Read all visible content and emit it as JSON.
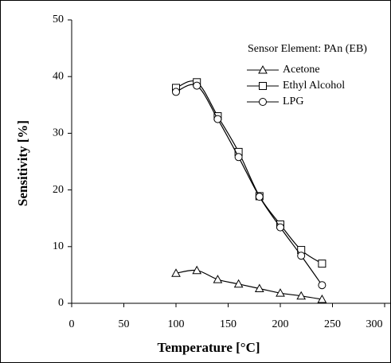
{
  "chart_data": {
    "type": "line",
    "x_label": "Temperature [°C]",
    "y_label": "Sensitivity [%]",
    "legend_title": "Sensor Element: PAn (EB)",
    "x": [
      100,
      120,
      140,
      160,
      180,
      200,
      220,
      240
    ],
    "series": [
      {
        "name": "Acetone",
        "marker": "triangle",
        "color": "#000000",
        "values": [
          5.3,
          5.8,
          4.2,
          3.4,
          2.6,
          1.8,
          1.3,
          0.7
        ]
      },
      {
        "name": "Ethyl Alcohol",
        "marker": "square",
        "color": "#000000",
        "values": [
          38,
          39,
          33,
          26.7,
          18.9,
          13.9,
          9.4,
          7.0
        ]
      },
      {
        "name": "LPG",
        "marker": "circle",
        "color": "#000000",
        "values": [
          37.3,
          38.4,
          32.5,
          25.8,
          18.8,
          13.4,
          8.4,
          3.2
        ]
      }
    ],
    "xlim": [
      0,
      300
    ],
    "xticks": [
      0,
      50,
      100,
      150,
      200,
      250,
      300
    ],
    "ylim": [
      0,
      50
    ],
    "yticks": [
      0,
      10,
      20,
      30,
      40,
      50
    ],
    "grid": false
  }
}
